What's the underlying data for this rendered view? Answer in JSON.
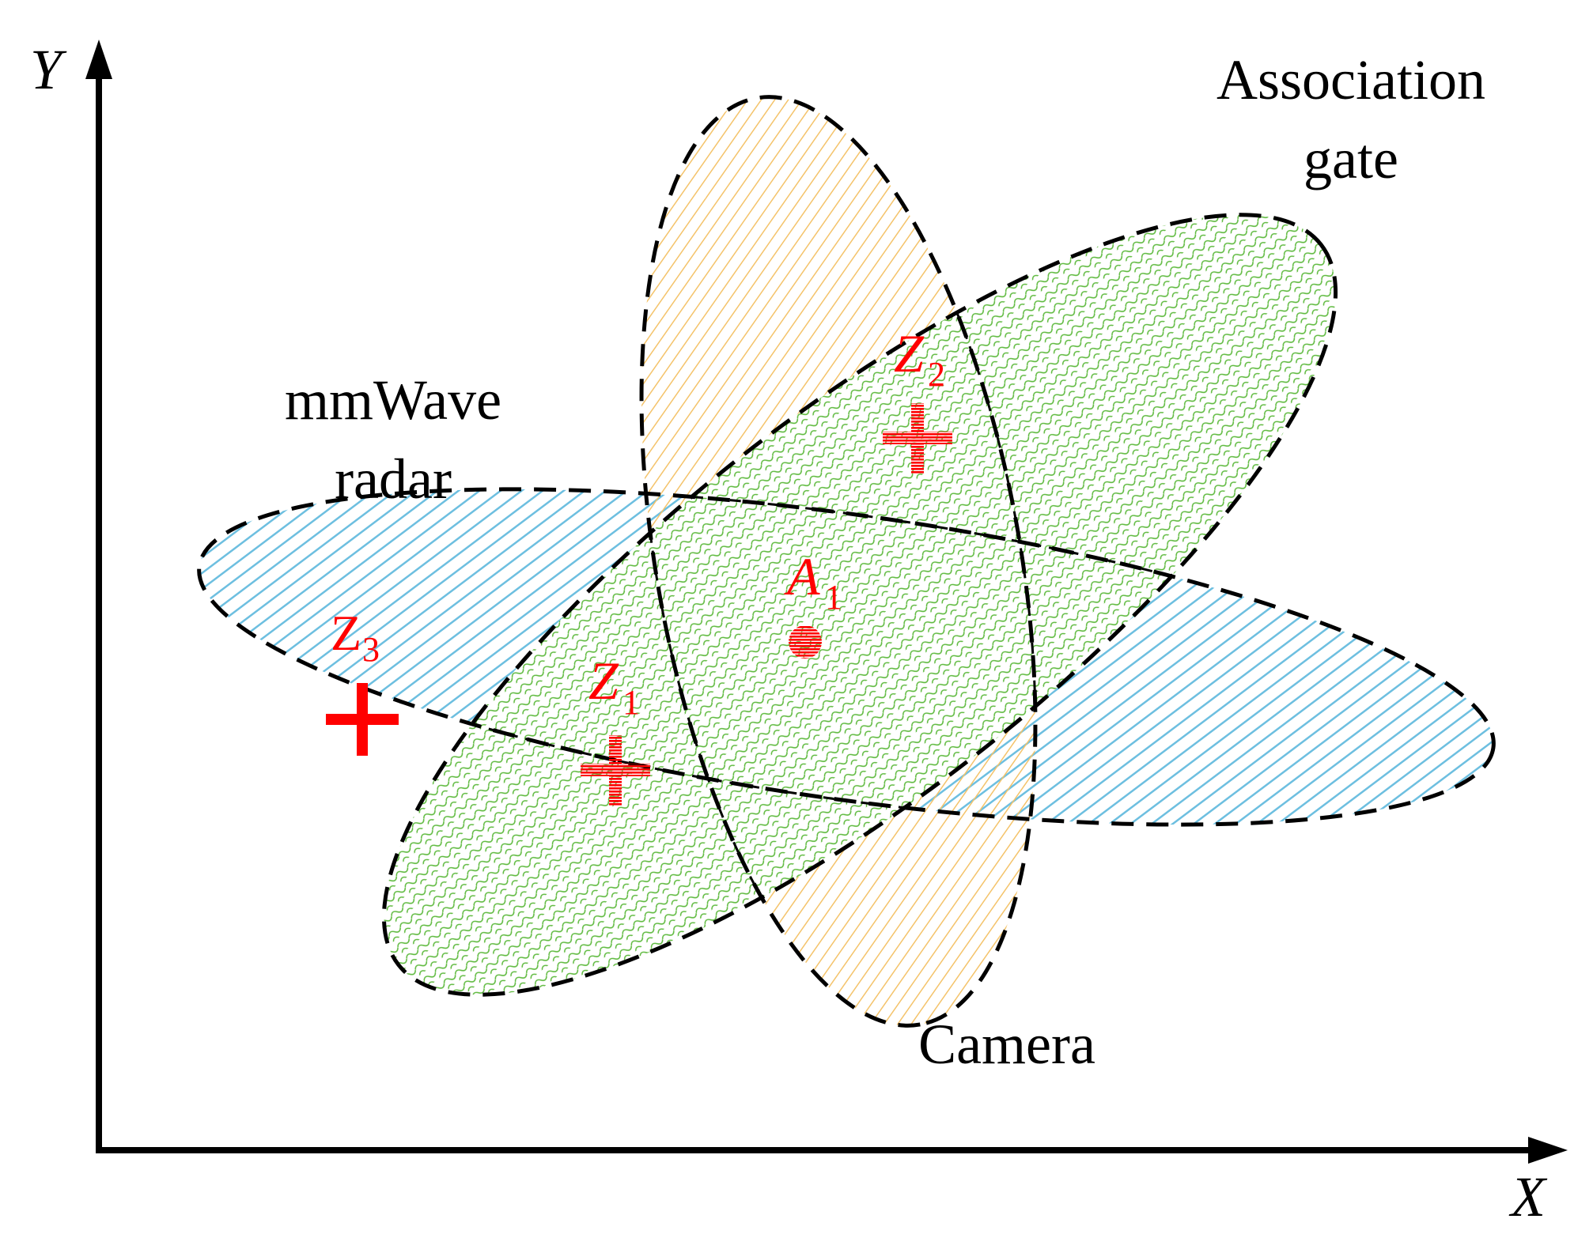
{
  "axes": {
    "x_label": "X",
    "y_label": "Y"
  },
  "labels": {
    "association_gate": [
      "Association",
      "gate"
    ],
    "radar": [
      "mmWave",
      "radar"
    ],
    "camera": "Camera"
  },
  "points": {
    "z1": {
      "base": "Z",
      "sub": "1"
    },
    "z2": {
      "base": "Z",
      "sub": "2"
    },
    "z3": {
      "base": "Z",
      "sub": "3"
    },
    "a1": {
      "base": "A",
      "sub": "1"
    }
  },
  "colors": {
    "gate_fill": "#5fba3f",
    "camera_fill": "#f4c36a",
    "radar_fill": "#6dbfe0",
    "marker": "#ff0000",
    "outline": "#000000"
  }
}
